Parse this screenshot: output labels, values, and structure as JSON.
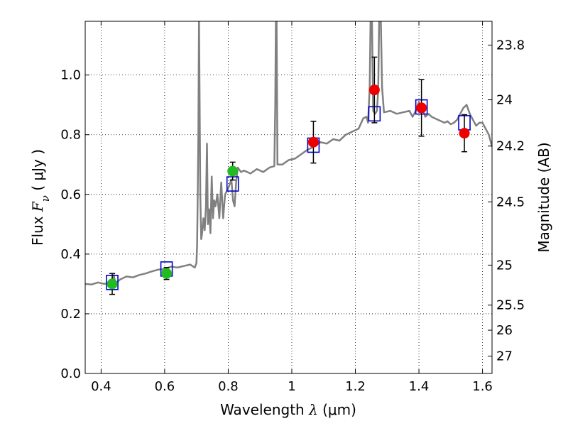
{
  "chart_data": {
    "type": "scatter",
    "xlabel_prefix": "Wavelength ",
    "xlabel_symbol": "λ",
    "xlabel_unit": " (μm)",
    "ylabel_prefix": "Flux ",
    "ylabel_symbol": "F",
    "ylabel_subscript": "ν",
    "ylabel_unit": " ( μJy )",
    "y2label": "Magnitude (AB)",
    "xlim": [
      0.35,
      1.63
    ],
    "ylim": [
      0.0,
      1.18
    ],
    "grid": true,
    "x_ticks": [
      {
        "v": 0.4,
        "label": "0.4"
      },
      {
        "v": 0.6,
        "label": "0.6"
      },
      {
        "v": 0.8,
        "label": "0.8"
      },
      {
        "v": 1.0,
        "label": "1"
      },
      {
        "v": 1.2,
        "label": "1.2"
      },
      {
        "v": 1.4,
        "label": "1.4"
      },
      {
        "v": 1.6,
        "label": "1.6"
      }
    ],
    "y_ticks": [
      {
        "v": 0.0,
        "label": "0.0"
      },
      {
        "v": 0.2,
        "label": "0.2"
      },
      {
        "v": 0.4,
        "label": "0.4"
      },
      {
        "v": 0.6,
        "label": "0.6"
      },
      {
        "v": 0.8,
        "label": "0.8"
      },
      {
        "v": 1.0,
        "label": "1.0"
      }
    ],
    "mag_ticks": [
      {
        "flux": 1.1,
        "label": "23.8"
      },
      {
        "flux": 0.917,
        "label": "24"
      },
      {
        "flux": 0.762,
        "label": "24.2"
      },
      {
        "flux": 0.575,
        "label": "24.5"
      },
      {
        "flux": 0.363,
        "label": "25"
      },
      {
        "flux": 0.229,
        "label": "25.5"
      },
      {
        "flux": 0.145,
        "label": "26"
      },
      {
        "flux": 0.058,
        "label": "27"
      }
    ],
    "colors": {
      "spectrum": "#808080",
      "model": "#0000cc",
      "optical": "#22bb22",
      "nir": "#ee0000",
      "errorbar": "#000000"
    },
    "model_photometry": [
      {
        "x": 0.435,
        "y": 0.305
      },
      {
        "x": 0.606,
        "y": 0.35
      },
      {
        "x": 0.814,
        "y": 0.635
      },
      {
        "x": 1.068,
        "y": 0.765
      },
      {
        "x": 1.26,
        "y": 0.87
      },
      {
        "x": 1.408,
        "y": 0.893
      },
      {
        "x": 1.543,
        "y": 0.84
      }
    ],
    "observed": [
      {
        "x": 0.435,
        "y": 0.3,
        "err": 0.035,
        "band": "optical"
      },
      {
        "x": 0.606,
        "y": 0.335,
        "err": 0.02,
        "band": "optical"
      },
      {
        "x": 0.814,
        "y": 0.678,
        "err": 0.03,
        "band": "optical"
      },
      {
        "x": 1.068,
        "y": 0.775,
        "err": 0.07,
        "band": "nir"
      },
      {
        "x": 1.26,
        "y": 0.95,
        "err": 0.11,
        "band": "nir"
      },
      {
        "x": 1.408,
        "y": 0.89,
        "err": 0.095,
        "band": "nir"
      },
      {
        "x": 1.543,
        "y": 0.805,
        "err": 0.062,
        "band": "nir"
      }
    ],
    "spectrum": [
      [
        0.35,
        0.3
      ],
      [
        0.37,
        0.298
      ],
      [
        0.39,
        0.305
      ],
      [
        0.41,
        0.3
      ],
      [
        0.43,
        0.305
      ],
      [
        0.44,
        0.33
      ],
      [
        0.445,
        0.3
      ],
      [
        0.46,
        0.315
      ],
      [
        0.48,
        0.325
      ],
      [
        0.5,
        0.322
      ],
      [
        0.52,
        0.33
      ],
      [
        0.54,
        0.335
      ],
      [
        0.56,
        0.342
      ],
      [
        0.58,
        0.348
      ],
      [
        0.6,
        0.35
      ],
      [
        0.62,
        0.358
      ],
      [
        0.64,
        0.355
      ],
      [
        0.66,
        0.36
      ],
      [
        0.68,
        0.365
      ],
      [
        0.695,
        0.355
      ],
      [
        0.7,
        0.37
      ],
      [
        0.702,
        0.43
      ],
      [
        0.704,
        0.6
      ],
      [
        0.706,
        0.8
      ],
      [
        0.708,
        1.2
      ],
      [
        0.71,
        0.9
      ],
      [
        0.712,
        0.6
      ],
      [
        0.715,
        0.45
      ],
      [
        0.718,
        0.47
      ],
      [
        0.722,
        0.52
      ],
      [
        0.726,
        0.48
      ],
      [
        0.73,
        0.56
      ],
      [
        0.733,
        0.77
      ],
      [
        0.736,
        0.5
      ],
      [
        0.74,
        0.55
      ],
      [
        0.744,
        0.47
      ],
      [
        0.748,
        0.66
      ],
      [
        0.752,
        0.52
      ],
      [
        0.756,
        0.58
      ],
      [
        0.76,
        0.56
      ],
      [
        0.766,
        0.6
      ],
      [
        0.772,
        0.52
      ],
      [
        0.778,
        0.64
      ],
      [
        0.784,
        0.52
      ],
      [
        0.79,
        0.6
      ],
      [
        0.8,
        0.62
      ],
      [
        0.81,
        0.65
      ],
      [
        0.815,
        0.58
      ],
      [
        0.82,
        0.56
      ],
      [
        0.825,
        0.64
      ],
      [
        0.83,
        0.69
      ],
      [
        0.84,
        0.675
      ],
      [
        0.85,
        0.68
      ],
      [
        0.87,
        0.67
      ],
      [
        0.89,
        0.685
      ],
      [
        0.91,
        0.675
      ],
      [
        0.93,
        0.69
      ],
      [
        0.945,
        0.695
      ],
      [
        0.948,
        0.9
      ],
      [
        0.95,
        1.2
      ],
      [
        0.952,
        1.2
      ],
      [
        0.955,
        0.7
      ],
      [
        0.97,
        0.7
      ],
      [
        0.99,
        0.715
      ],
      [
        1.01,
        0.72
      ],
      [
        1.03,
        0.735
      ],
      [
        1.05,
        0.75
      ],
      [
        1.07,
        0.76
      ],
      [
        1.09,
        0.775
      ],
      [
        1.11,
        0.77
      ],
      [
        1.13,
        0.785
      ],
      [
        1.15,
        0.78
      ],
      [
        1.17,
        0.8
      ],
      [
        1.19,
        0.81
      ],
      [
        1.21,
        0.82
      ],
      [
        1.225,
        0.855
      ],
      [
        1.235,
        0.86
      ],
      [
        1.24,
        0.84
      ],
      [
        1.245,
        0.96
      ],
      [
        1.248,
        1.2
      ],
      [
        1.252,
        1.2
      ],
      [
        1.256,
        0.88
      ],
      [
        1.262,
        0.87
      ],
      [
        1.268,
        0.88
      ],
      [
        1.272,
        0.95
      ],
      [
        1.275,
        1.2
      ],
      [
        1.28,
        1.2
      ],
      [
        1.284,
        0.96
      ],
      [
        1.29,
        0.875
      ],
      [
        1.31,
        0.88
      ],
      [
        1.33,
        0.87
      ],
      [
        1.35,
        0.875
      ],
      [
        1.37,
        0.88
      ],
      [
        1.38,
        0.86
      ],
      [
        1.39,
        0.88
      ],
      [
        1.4,
        0.91
      ],
      [
        1.41,
        0.89
      ],
      [
        1.42,
        0.86
      ],
      [
        1.43,
        0.87
      ],
      [
        1.44,
        0.86
      ],
      [
        1.45,
        0.855
      ],
      [
        1.46,
        0.85
      ],
      [
        1.47,
        0.845
      ],
      [
        1.48,
        0.84
      ],
      [
        1.49,
        0.845
      ],
      [
        1.5,
        0.835
      ],
      [
        1.51,
        0.84
      ],
      [
        1.52,
        0.85
      ],
      [
        1.53,
        0.87
      ],
      [
        1.54,
        0.89
      ],
      [
        1.55,
        0.9
      ],
      [
        1.56,
        0.87
      ],
      [
        1.57,
        0.85
      ],
      [
        1.58,
        0.83
      ],
      [
        1.59,
        0.84
      ],
      [
        1.6,
        0.84
      ],
      [
        1.61,
        0.82
      ],
      [
        1.62,
        0.8
      ],
      [
        1.63,
        0.76
      ]
    ]
  }
}
